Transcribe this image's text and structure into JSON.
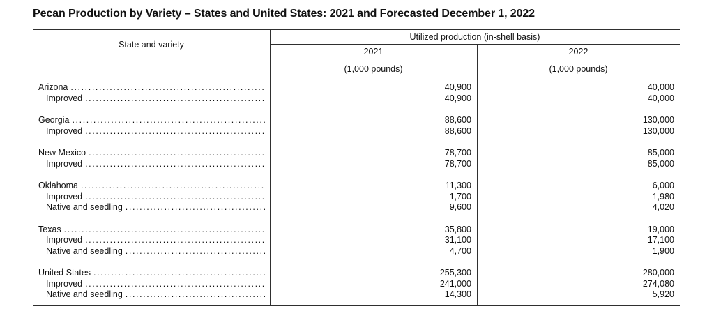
{
  "title": "Pecan Production by Variety – States and United States: 2021 and Forecasted December 1, 2022",
  "colors": {
    "text": "#111111",
    "rule": "#2f2f2f",
    "background": "#ffffff"
  },
  "table": {
    "headers": {
      "state_and_variety": "State and variety",
      "group": "Utilized production (in-shell basis)",
      "year_2021": "2021",
      "year_2022": "2022",
      "units_2021": "(1,000 pounds)",
      "units_2022": "(1,000 pounds)"
    },
    "groups": [
      {
        "state": "Arizona",
        "rows": [
          {
            "label": "Arizona",
            "indent": 0,
            "y2021": "40,900",
            "y2022": "40,000"
          },
          {
            "label": "Improved",
            "indent": 1,
            "y2021": "40,900",
            "y2022": "40,000"
          }
        ]
      },
      {
        "state": "Georgia",
        "rows": [
          {
            "label": "Georgia",
            "indent": 0,
            "y2021": "88,600",
            "y2022": "130,000"
          },
          {
            "label": "Improved",
            "indent": 1,
            "y2021": "88,600",
            "y2022": "130,000"
          }
        ]
      },
      {
        "state": "New Mexico",
        "rows": [
          {
            "label": "New Mexico",
            "indent": 0,
            "y2021": "78,700",
            "y2022": "85,000"
          },
          {
            "label": "Improved",
            "indent": 1,
            "y2021": "78,700",
            "y2022": "85,000"
          }
        ]
      },
      {
        "state": "Oklahoma",
        "rows": [
          {
            "label": "Oklahoma",
            "indent": 0,
            "y2021": "11,300",
            "y2022": "6,000"
          },
          {
            "label": "Improved",
            "indent": 1,
            "y2021": "1,700",
            "y2022": "1,980"
          },
          {
            "label": "Native and seedling",
            "indent": 1,
            "y2021": "9,600",
            "y2022": "4,020"
          }
        ]
      },
      {
        "state": "Texas",
        "rows": [
          {
            "label": "Texas",
            "indent": 0,
            "y2021": "35,800",
            "y2022": "19,000"
          },
          {
            "label": "Improved",
            "indent": 1,
            "y2021": "31,100",
            "y2022": "17,100"
          },
          {
            "label": "Native and seedling",
            "indent": 1,
            "y2021": "4,700",
            "y2022": "1,900"
          }
        ]
      },
      {
        "state": "United States",
        "rows": [
          {
            "label": "United States",
            "indent": 0,
            "y2021": "255,300",
            "y2022": "280,000"
          },
          {
            "label": "Improved",
            "indent": 1,
            "y2021": "241,000",
            "y2022": "274,080"
          },
          {
            "label": "Native and seedling",
            "indent": 1,
            "y2021": "14,300",
            "y2022": "5,920"
          }
        ]
      }
    ]
  }
}
